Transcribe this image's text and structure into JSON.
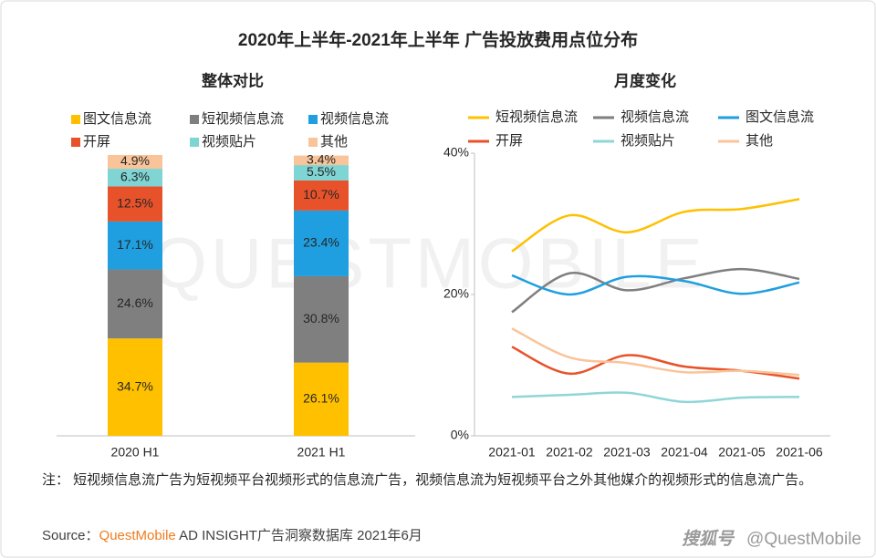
{
  "title": "2020年上半年-2021年上半年 广告投放费用点位分布",
  "watermark": "QUESTMOBILE",
  "chart_data": [
    {
      "type": "stacked_bar",
      "title": "整体对比",
      "categories": [
        "2020 H1",
        "2021 H1"
      ],
      "series": [
        {
          "name": "图文信息流",
          "color": "#ffc000",
          "values": [
            34.7,
            26.1
          ],
          "value_labels": [
            "34.7%",
            "26.1%"
          ]
        },
        {
          "name": "短视频信息流",
          "color": "#7f7f7f",
          "values": [
            24.6,
            30.8
          ],
          "value_labels": [
            "24.6%",
            "30.8%"
          ]
        },
        {
          "name": "视频信息流",
          "color": "#1f9fe0",
          "values": [
            17.1,
            23.4
          ],
          "value_labels": [
            "17.1%",
            "23.4%"
          ]
        },
        {
          "name": "开屏",
          "color": "#e8522a",
          "values": [
            12.5,
            10.7
          ],
          "value_labels": [
            "12.5%",
            "10.7%"
          ]
        },
        {
          "name": "视频贴片",
          "color": "#7fd4d4",
          "values": [
            6.3,
            5.5
          ],
          "value_labels": [
            "6.3%",
            "5.5%"
          ]
        },
        {
          "name": "其他",
          "color": "#f9c49a",
          "values": [
            4.9,
            3.4
          ],
          "value_labels": [
            "4.9%",
            "3.4%"
          ]
        }
      ]
    },
    {
      "type": "line",
      "title": "月度变化",
      "smooth": true,
      "categories": [
        "2021-01",
        "2021-02",
        "2021-03",
        "2021-04",
        "2021-05",
        "2021-06"
      ],
      "ylim": [
        0,
        40
      ],
      "yticks": [
        {
          "value": 0,
          "label": "0%"
        },
        {
          "value": 20,
          "label": "20%"
        },
        {
          "value": 40,
          "label": "40%"
        }
      ],
      "series": [
        {
          "name": "短视频信息流",
          "color": "#ffc000",
          "values": [
            26.1,
            31.2,
            28.8,
            31.7,
            32.1,
            33.5
          ]
        },
        {
          "name": "视频信息流",
          "color": "#7f7f7f",
          "values": [
            17.5,
            23.0,
            20.6,
            22.3,
            23.6,
            22.2
          ]
        },
        {
          "name": "图文信息流",
          "color": "#1f9fe0",
          "values": [
            22.7,
            20.0,
            22.5,
            21.9,
            20.1,
            21.7
          ]
        },
        {
          "name": "开屏",
          "color": "#e8522a",
          "values": [
            12.6,
            8.8,
            11.4,
            9.8,
            9.2,
            8.1
          ]
        },
        {
          "name": "视频贴片",
          "color": "#8fd6d6",
          "values": [
            5.5,
            5.8,
            6.1,
            4.8,
            5.4,
            5.5
          ]
        },
        {
          "name": "其他",
          "color": "#f9c49a",
          "values": [
            15.2,
            11.1,
            10.3,
            9.0,
            9.2,
            8.6
          ]
        }
      ]
    }
  ],
  "note": "注：  短视频信息流广告为短视频平台视频形式的信息流广告，视频信息流为短视频平台之外其他媒介的视频形式的信息流广告。",
  "source": {
    "label": "Source：",
    "brand": "QuestMobile",
    "text": " AD INSIGHT广告洞察数据库 2021年6月"
  },
  "footer": {
    "platform": "搜狐号",
    "credit": "@QuestMobile"
  }
}
